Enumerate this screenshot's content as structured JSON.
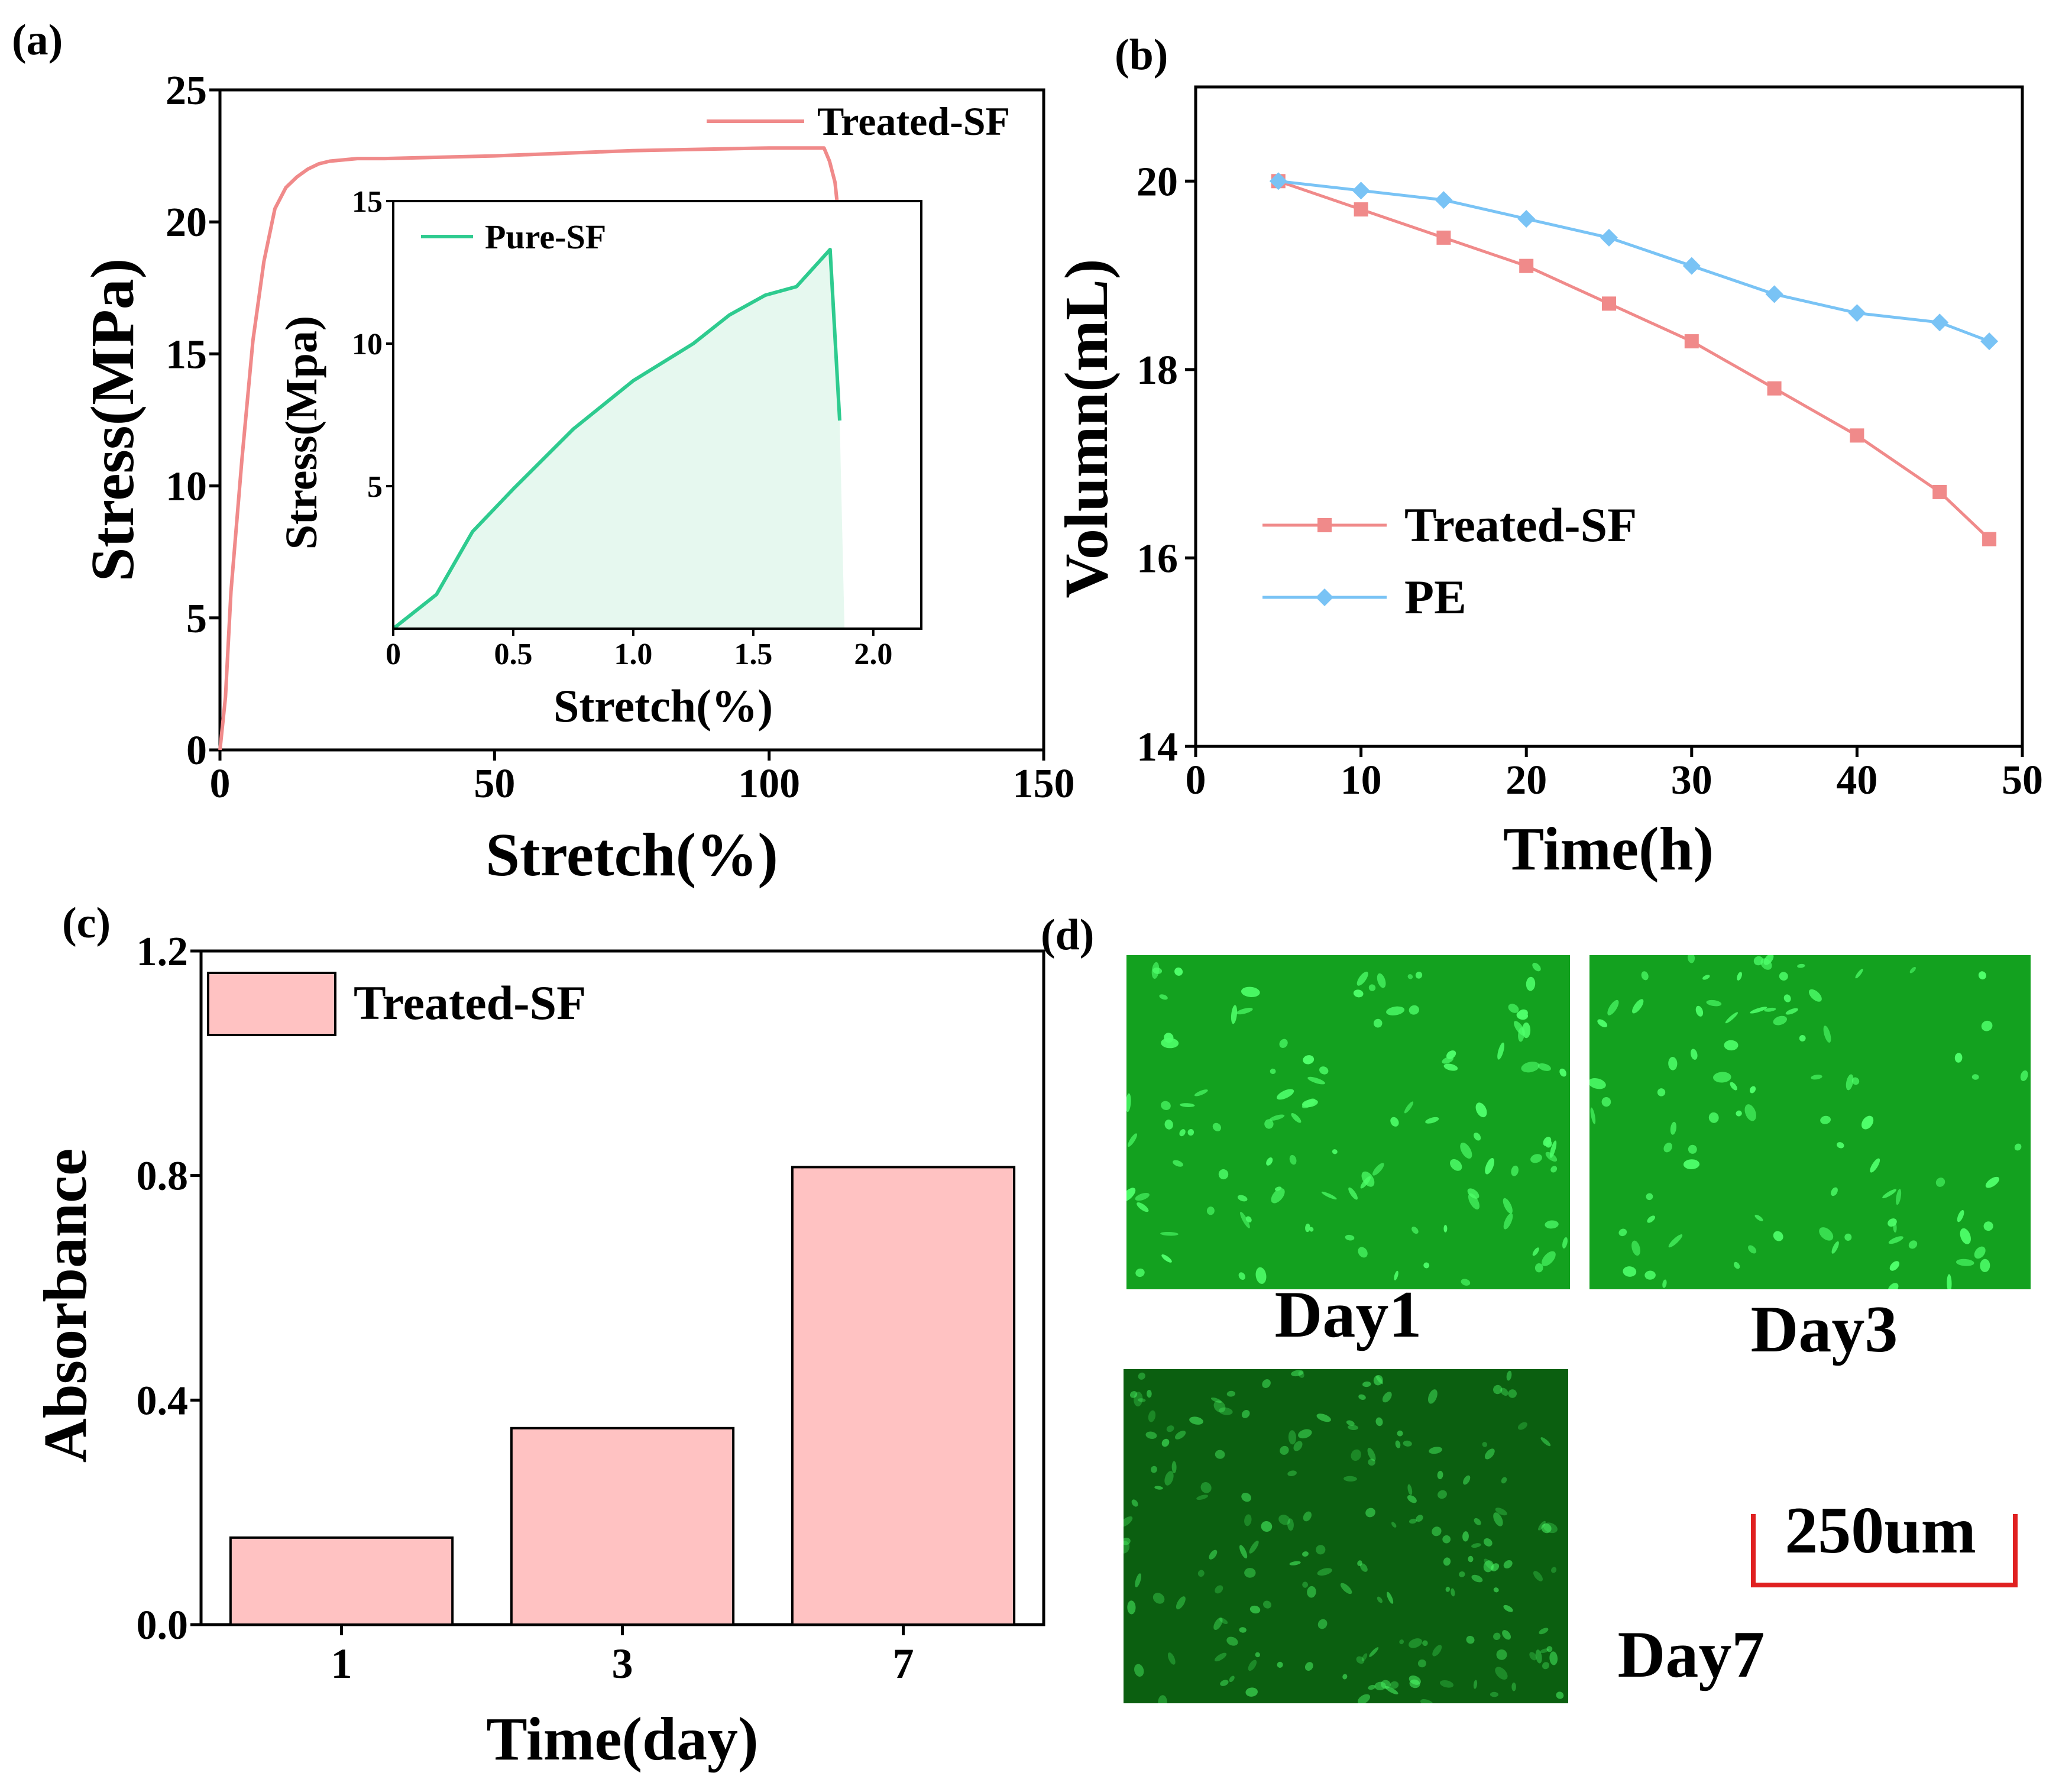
{
  "panels": {
    "a": {
      "label": "(a)"
    },
    "b": {
      "label": "(b)"
    },
    "c": {
      "label": "(c)"
    },
    "d": {
      "label": "(d)"
    }
  },
  "colors": {
    "treated": "#f08a8a",
    "pure": "#2ecb8f",
    "pure_fill": "#e6f8ef",
    "pe": "#79c3f5",
    "bar_fill": "#ffc2c2",
    "scale_bar": "#e02020",
    "micro_bg": "#13a11f",
    "micro_bg_dim": "#0b5f10",
    "micro_cell": "#4eff6a"
  },
  "chart_data": [
    {
      "id": "a-main",
      "type": "line",
      "xlabel": "Stretch(%)",
      "ylabel": "Stress(MPa)",
      "xlim": [
        0,
        150
      ],
      "ylim": [
        0,
        25
      ],
      "xticks": [
        "0",
        "50",
        "100",
        "150"
      ],
      "yticks": [
        "0",
        "5",
        "10",
        "15",
        "20",
        "25"
      ],
      "legend_placement": "top-right",
      "series": [
        {
          "name": "Treated-SF",
          "x": [
            0,
            1,
            2,
            4,
            6,
            8,
            10,
            12,
            14,
            16,
            18,
            20,
            25,
            30,
            50,
            75,
            100,
            108,
            110,
            111,
            112,
            113,
            114,
            115
          ],
          "y": [
            0,
            2,
            6,
            11,
            15.5,
            18.5,
            20.5,
            21.3,
            21.7,
            22.0,
            22.2,
            22.3,
            22.4,
            22.4,
            22.5,
            22.7,
            22.8,
            22.8,
            22.8,
            22.3,
            21.5,
            19.5,
            15,
            11
          ]
        }
      ]
    },
    {
      "id": "a-inset",
      "type": "area",
      "xlabel": "Stretch(%)",
      "ylabel": "Stress(Mpa)",
      "xlim": [
        0,
        2.2
      ],
      "ylim": [
        0,
        15
      ],
      "xticks": [
        "0",
        "0.5",
        "1.0",
        "1.5",
        "2.0"
      ],
      "yticks": [
        "5",
        "10",
        "15"
      ],
      "legend_placement": "top-left",
      "series": [
        {
          "name": "Pure-SF",
          "x": [
            0,
            0.18,
            0.33,
            0.5,
            0.75,
            1.0,
            1.25,
            1.4,
            1.55,
            1.68,
            1.82,
            1.86
          ],
          "y": [
            0,
            1.2,
            3.4,
            4.9,
            7.0,
            8.7,
            10.0,
            11.0,
            11.7,
            12.0,
            13.3,
            7.3
          ]
        }
      ]
    },
    {
      "id": "b",
      "type": "line",
      "xlabel": "Time(h)",
      "ylabel": "Volumn(mL)",
      "xlim": [
        0,
        50
      ],
      "ylim": [
        14,
        21
      ],
      "xticks": [
        "0",
        "10",
        "20",
        "30",
        "40",
        "50"
      ],
      "yticks": [
        "14",
        "16",
        "18",
        "20"
      ],
      "legend_placement": "bottom-left",
      "series": [
        {
          "name": "Treated-SF",
          "x": [
            5,
            10,
            15,
            20,
            25,
            30,
            35,
            40,
            45,
            48
          ],
          "y": [
            20.0,
            19.7,
            19.4,
            19.1,
            18.7,
            18.3,
            17.8,
            17.3,
            16.7,
            16.2
          ]
        },
        {
          "name": "PE",
          "x": [
            5,
            10,
            15,
            20,
            25,
            30,
            35,
            40,
            45,
            48
          ],
          "y": [
            20.0,
            19.9,
            19.8,
            19.6,
            19.4,
            19.1,
            18.8,
            18.6,
            18.5,
            18.3
          ]
        }
      ]
    },
    {
      "id": "c",
      "type": "bar",
      "xlabel": "Time(day)",
      "ylabel": "Absorbance",
      "categories": [
        "1",
        "3",
        "7"
      ],
      "ylim": [
        0,
        1.2
      ],
      "yticks": [
        "0.0",
        "0.4",
        "0.8",
        "1.2"
      ],
      "legend_placement": "top-left",
      "series": [
        {
          "name": "Treated-SF",
          "values": [
            0.155,
            0.35,
            0.815
          ]
        }
      ]
    }
  ],
  "micrographs": [
    {
      "caption": "Day1",
      "density": 1.0,
      "dim": false
    },
    {
      "caption": "Day3",
      "density": 0.8,
      "dim": false
    },
    {
      "caption": "Day7",
      "density": 1.6,
      "dim": true
    }
  ],
  "scale_bar": {
    "label": "250um"
  }
}
